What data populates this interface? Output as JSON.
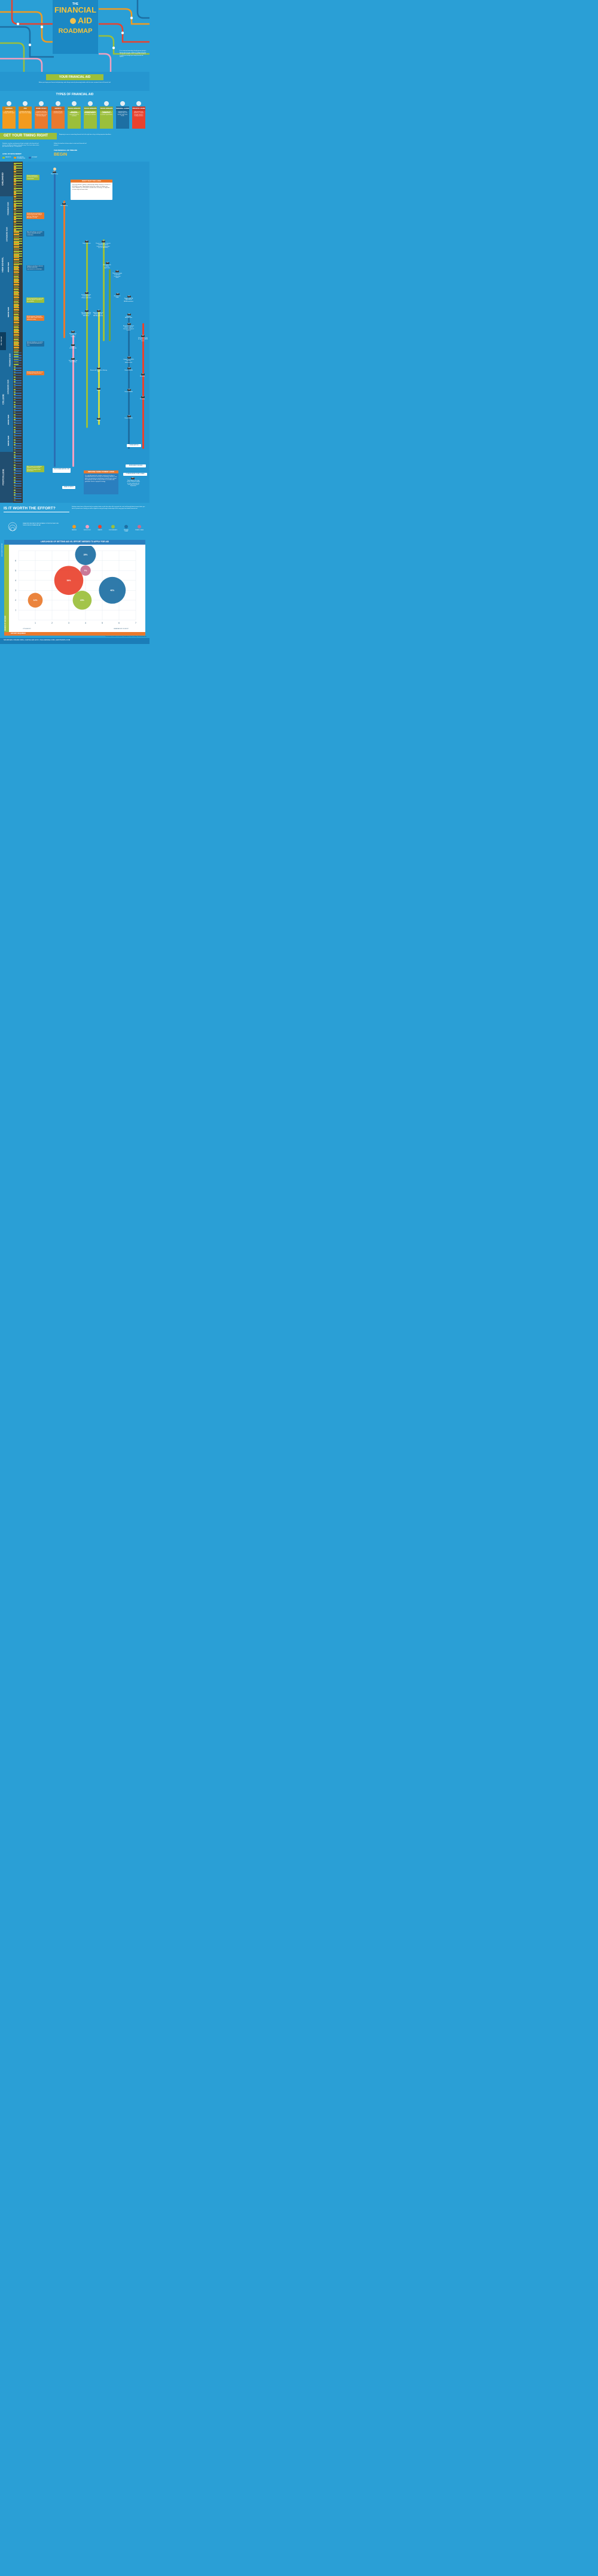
{
  "title": {
    "line1": "THE",
    "line2": "FINANCIAL",
    "line3": "AID",
    "line4": "ROADMAP"
  },
  "intro": "It's a scary and sometimes lonely journey trying to finance your (or your children's) college education. To help you navigate, we've created this roadmap to guide you through your many financial aid options.",
  "your_aid": {
    "heading": "YOUR FINANCIAL AID",
    "text": "Before you begin your financial aid planning, make things easier by becoming familiar with the more common forms of financial aid."
  },
  "types": {
    "heading": "TYPES OF FINANCIAL AID",
    "cards": [
      {
        "label": "SAVINGS",
        "desc": "Includes parents' savings and 529 plans",
        "color": "#f29b1f"
      },
      {
        "label": "JOB",
        "desc": "Includes jobs during high school and college",
        "color": "#f29b1f"
      },
      {
        "label": "WORK STUDY",
        "desc": "Programs that help students earn financial funding through a part-time work program",
        "color": "#e9792d"
      },
      {
        "label": "GRANTS",
        "desc": "Includes Pell and institutional grants",
        "color": "#e9792d"
      },
      {
        "label": "SCHOLARSHIPS FEDERAL",
        "desc": "Any federal scholarships issued separately from an institution",
        "color": "#9bbf3b"
      },
      {
        "label": "SCHOLARSHIPS INSTITUTIONAL",
        "desc": "Scholarships offered directly from a university or institution",
        "color": "#9bbf3b"
      },
      {
        "label": "SCHOLARSHIPS GENERAL",
        "desc": "Scholarships from corporations, contests, or private organizations",
        "color": "#9bbf3b"
      },
      {
        "label": "FEDERAL LOANS",
        "desc": "Includes Perkins, Stafford (Sub and Unsub), and Parent PLUS",
        "color": "#1d6fa3"
      },
      {
        "label": "PRIVATE LOANS",
        "desc": "Any private loans offered to a student through a bank or lending institution",
        "color": "#e9422e"
      }
    ]
  },
  "timing": {
    "heading": "GET YOUR TIMING RIGHT",
    "sub": "Beginning to save or researching financial aid at the right time is key to letting important deadlines.",
    "left_text": "Students, teachers and parents all get involved in the financial aid process to different degrees along the way. This chart shows when you need to step up – or step back.",
    "follow": "Follow this timeline to know when to start each financial aid process.",
    "timeline_title": "THE FINANCIAL AID TIMELINE",
    "begin": "BEGIN",
    "involvement": "LEVEL OF INVOLVEMENT",
    "legend": [
      "PARENTS",
      "EDUCATOR/ COUNSELORS",
      "STUDENT"
    ]
  },
  "years": [
    "CHILDHOOD",
    "FRESHMAN YEAR",
    "SOPHOMORE YEAR",
    "JUNIOR YEAR",
    "HIGH SCHOOL",
    "SENIOR YEAR",
    "FILL THE GAP",
    "FRESHMAN YEAR",
    "SOPHOMORE YEAR",
    "COLLEGE",
    "JUNIOR YEAR",
    "SENIOR YEAR",
    "POSTCOLLEGE"
  ],
  "dont_wait": {
    "title": "DON'T WAIT TOO LONG",
    "text": "For many families, putting a child through college could run in excess of $100,000 or more. Now multiply that by the number of children you have. Whether it's a 529 Plan or another form of savings, it's important to start early and invest often."
  },
  "notes": [
    "Parents should meet with financial advisors in preparation.",
    "Student becomes involved by researching possible colleges and their Total Cost of Attendance (TCOA).",
    "Meet with guidance counselors to discuss possible aid and scholarships.",
    "Guidance counselor or educator will help student with requirements for scholarships.",
    "Parents may decide to meet with financial advisors to prepare or fill out FAFSA.",
    "Student receives Student Aid Report (SAR). Begin looking for additional funding.",
    "Educator's/guidance counselor's role in financial aid comes to a close.",
    "Students begin to take over role of mitigating college finances.",
    "After a series of consolidation payments, parents may be released as cosigners from private loans."
  ],
  "events": {
    "m_early": "EARLY",
    "begin_saving": "Begin saving",
    "m_sep1": "SEP",
    "start_working": "Start working",
    "m_jan1": "JAN",
    "begin_research": "Begin research",
    "m_jun1": "JUN",
    "prepare": "Prepare any extra materials needed for special institutional scholarships (e.g. art portfolios)",
    "m_dec1": "DEC",
    "automatic": "Automatic with college application",
    "m_jun2": "JUN",
    "research_apply": "Research & apply for general scholarships online",
    "m_sep2": "SEP",
    "institutional_grants": "Institutional grants automatic with college application",
    "m_sep3": "SEP",
    "research_apply2": "Research & apply",
    "m_dec2": "DEC",
    "request_pin": "Request FAFSA PIN & fill out FAFSA worksheet",
    "m_jan2": "JAN",
    "pell": "Pell grant eligibility determined when FAFSA filed",
    "m_jan3": "JAN",
    "apply_federal": "Apply for a Federal scholarship with FAFSA application",
    "m_jan4": "JAN",
    "file_fafsa": "File your FAFSA online",
    "m_mar": "MAR",
    "awards": "Awards letter informs of eligibility",
    "m_apr": "APR",
    "accept_stafford": "Accept Stafford loan award, apply for Parent PLUS loan if needed",
    "m_jun3": "JUN",
    "research_jobs": "Research available jobs",
    "m_may": "MAY",
    "research_private": "Research & apply for private student loans",
    "m_sep4": "SEP",
    "receive_job": "Receive job and start working",
    "m_sep5": "SEP",
    "student_signs": "Student signs MPN for loan disbursement",
    "m_jan5": "JAN",
    "renew_fafsa_year": "Renew with FAFSA for following year",
    "m_jan6": "JAN",
    "renew_fafsa1": "Renew FAFSA",
    "m_jul1": "JUL",
    "reapply1": "Re-apply",
    "m_jan7": "JAN",
    "renew1": "Renew",
    "m_jan8": "JAN",
    "renew_fafsa2": "Renew FAFSA",
    "m_jul2": "JUL",
    "reapply2": "Re-apply",
    "m_jan9": "JAN",
    "renew2": "Renew",
    "m_jan10": "JAN",
    "renew_fafsa3": "Renew FAFSA",
    "graduation": "GRADUATION",
    "repayment": "REPAYMENT BEGINS",
    "consolidate": "CONSOLIDATE YOUR LOANS",
    "m_sep6": "SEP",
    "depending": "Depending on the type of loan, the grace period for loan repayment will come due as early as September.",
    "post_grad_job": "POST-GRADUATION JOB",
    "grad_school": "GRAD SCHOOL"
  },
  "repaying": {
    "title": "REPAYING THOSE STUDENT LOANS",
    "text": "It is critically important for students coming out of college to consolidate their loans and seek exit counseling. However, even before you graduate you should keep in mind that your student loan payments are due as early as three to six months after graduation. Devise a repayment strategy."
  },
  "worth": {
    "heading": "IS IT WORTH THE EFFORT?",
    "text": "Seeking certain forms of financial aid can produce better results than others. As a general rule, seek aid through federal means before you look for private loans. Ideally, you will be eligible for and get through scholarships to fill in any gaps from federal financial aid.",
    "diam_note": "DIAMETER INDICATES PERCENTAGE OF PEOPLE WHO USE THIS FORM OF FINANCIAL AID",
    "legend": [
      {
        "label": "SAVINGS",
        "color": "#f29b1f"
      },
      {
        "label": "WORK STUDY",
        "color": "#f2a0c0"
      },
      {
        "label": "GRANTS",
        "color": "#e9422e"
      },
      {
        "label": "SCHOLARSHIPS",
        "color": "#9bbf3b"
      },
      {
        "label": "FEDERAL LOANS",
        "color": "#1d6fa3"
      },
      {
        "label": "PRIVATE LOANS",
        "color": "#c66d8e"
      }
    ]
  },
  "chart_data": {
    "type": "scatter",
    "title": "LIKELIHOOD OF GETTING AID VS. EFFORT NEEDED TO APPLY FOR AID",
    "xlabel": "EFFORT REQUIRED",
    "ylabel": "CHANCE OF SUCCESS",
    "xlim": [
      0,
      7
    ],
    "ylim": [
      0,
      7
    ],
    "x_ticks": [
      "1",
      "2",
      "3",
      "4",
      "5",
      "6",
      "7"
    ],
    "y_ticks": [
      "1",
      "2",
      "3",
      "4",
      "5",
      "6"
    ],
    "x_low": "LITTLE EFFORT",
    "x_high": "GREAT AMOUNT OF EFFORT",
    "y_low": "LOW CHANCE OF SUCCESS",
    "y_high": "HIGH CHANCE OF SUCCESS",
    "points": [
      {
        "name": "Savings",
        "x": 1,
        "y": 2,
        "pct": "14%",
        "pct_value": 14,
        "color": "#e9792d"
      },
      {
        "name": "Grants",
        "x": 3,
        "y": 4,
        "pct": "54%",
        "pct_value": 54,
        "color": "#e9422e"
      },
      {
        "name": "Scholarships",
        "x": 3.8,
        "y": 2,
        "pct": "23%",
        "pct_value": 23,
        "color": "#9bbf3b"
      },
      {
        "name": "Private loans",
        "x": 4,
        "y": 5,
        "pct": "7%",
        "pct_value": 7,
        "color": "#c66d8e"
      },
      {
        "name": "Work study",
        "x": 4,
        "y": 6.6,
        "pct": "28%",
        "pct_value": 28,
        "color": "#1d6fa3"
      },
      {
        "name": "Federal loans",
        "x": 5.6,
        "y": 3,
        "pct": "46%",
        "pct_value": 46,
        "color": "#1d6fa3"
      }
    ],
    "footnote": "*Percentages of students as reported in \"How America Pays for College\" 2009 by Sallie Mae"
  },
  "sources": "SOURCES: FINAID.ORG | FAFSA.ED.GOV | SALLIEMAE.COM | EDVISORS.COM"
}
